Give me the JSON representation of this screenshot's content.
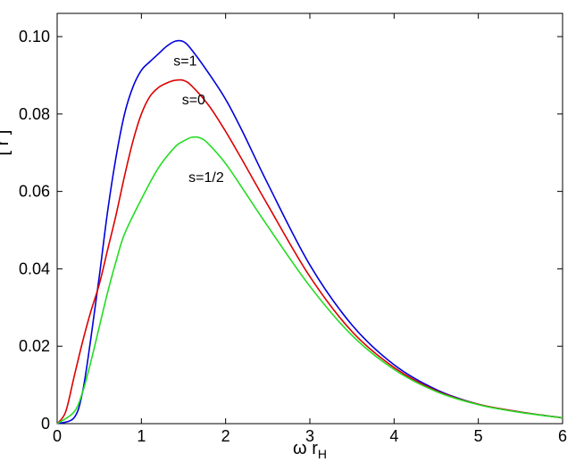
{
  "chart_data": {
    "type": "line",
    "title": "",
    "xlabel": {
      "main": "ω r",
      "sub": "H"
    },
    "ylabel_partial": "[ r ]",
    "xlim": [
      0,
      6
    ],
    "ylim": [
      0,
      0.106
    ],
    "xticks": [
      0,
      1,
      2,
      3,
      4,
      5,
      6
    ],
    "xtick_labels": [
      "0",
      "1",
      "2",
      "3",
      "4",
      "5",
      "6"
    ],
    "yticks": [
      0,
      0.02,
      0.04,
      0.06,
      0.08,
      0.1
    ],
    "ytick_labels": [
      "0",
      "0.02",
      "0.04",
      "0.06",
      "0.08",
      "0.10"
    ],
    "grid": false,
    "legend": "none",
    "series": [
      {
        "name": "s=1",
        "color": "#0000dd",
        "points": [
          [
            0.0,
            0.0
          ],
          [
            0.2,
            0.0015
          ],
          [
            0.3,
            0.008
          ],
          [
            0.4,
            0.022
          ],
          [
            0.5,
            0.038
          ],
          [
            0.6,
            0.055
          ],
          [
            0.7,
            0.069
          ],
          [
            0.8,
            0.08
          ],
          [
            0.9,
            0.087
          ],
          [
            1.0,
            0.0913
          ],
          [
            1.1,
            0.0935
          ],
          [
            1.2,
            0.0955
          ],
          [
            1.3,
            0.0975
          ],
          [
            1.4,
            0.0988
          ],
          [
            1.5,
            0.0987
          ],
          [
            1.6,
            0.0965
          ],
          [
            1.8,
            0.0905
          ],
          [
            2.0,
            0.0838
          ],
          [
            2.2,
            0.0755
          ],
          [
            2.5,
            0.062
          ],
          [
            3.0,
            0.041
          ],
          [
            3.5,
            0.0255
          ],
          [
            4.0,
            0.0152
          ],
          [
            4.5,
            0.0088
          ],
          [
            5.0,
            0.005
          ],
          [
            5.5,
            0.003
          ],
          [
            6.0,
            0.0015
          ]
        ]
      },
      {
        "name": "s=0",
        "color": "#dd0000",
        "points": [
          [
            0.0,
            0.0
          ],
          [
            0.1,
            0.003
          ],
          [
            0.2,
            0.012
          ],
          [
            0.3,
            0.021
          ],
          [
            0.4,
            0.029
          ],
          [
            0.5,
            0.036
          ],
          [
            0.6,
            0.045
          ],
          [
            0.7,
            0.054
          ],
          [
            0.8,
            0.064
          ],
          [
            0.9,
            0.073
          ],
          [
            1.0,
            0.08
          ],
          [
            1.1,
            0.0845
          ],
          [
            1.2,
            0.0868
          ],
          [
            1.3,
            0.088
          ],
          [
            1.4,
            0.0887
          ],
          [
            1.5,
            0.0887
          ],
          [
            1.6,
            0.0872
          ],
          [
            1.8,
            0.0822
          ],
          [
            2.0,
            0.0755
          ],
          [
            2.2,
            0.068
          ],
          [
            2.5,
            0.0565
          ],
          [
            3.0,
            0.038
          ],
          [
            3.5,
            0.0238
          ],
          [
            4.0,
            0.0145
          ],
          [
            4.5,
            0.0085
          ],
          [
            5.0,
            0.005
          ],
          [
            5.5,
            0.003
          ],
          [
            6.0,
            0.0015
          ]
        ]
      },
      {
        "name": "s=1/2",
        "color": "#22dd22",
        "points": [
          [
            0.0,
            0.0
          ],
          [
            0.2,
            0.003
          ],
          [
            0.3,
            0.008
          ],
          [
            0.4,
            0.016
          ],
          [
            0.5,
            0.025
          ],
          [
            0.6,
            0.034
          ],
          [
            0.7,
            0.042
          ],
          [
            0.8,
            0.049
          ],
          [
            1.0,
            0.058
          ],
          [
            1.2,
            0.066
          ],
          [
            1.4,
            0.0715
          ],
          [
            1.5,
            0.073
          ],
          [
            1.6,
            0.074
          ],
          [
            1.7,
            0.0738
          ],
          [
            1.8,
            0.0722
          ],
          [
            2.0,
            0.0672
          ],
          [
            2.2,
            0.0608
          ],
          [
            2.5,
            0.051
          ],
          [
            3.0,
            0.0355
          ],
          [
            3.5,
            0.0228
          ],
          [
            4.0,
            0.014
          ],
          [
            4.5,
            0.0083
          ],
          [
            5.0,
            0.0049
          ],
          [
            5.5,
            0.0029
          ],
          [
            6.0,
            0.0015
          ]
        ]
      }
    ],
    "annotations": [
      {
        "text": "s=1",
        "x": 1.52,
        "y": 0.0925
      },
      {
        "text": "s=0",
        "x": 1.62,
        "y": 0.0825
      },
      {
        "text": "s=1/2",
        "x": 1.77,
        "y": 0.0625
      }
    ]
  }
}
